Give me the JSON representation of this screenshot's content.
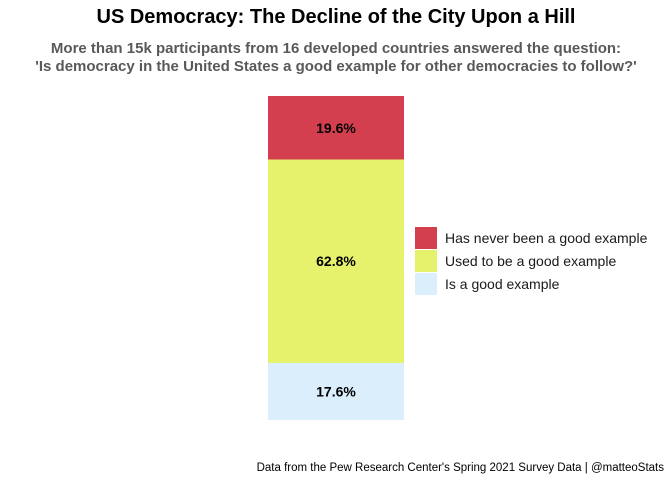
{
  "chart_data": {
    "type": "bar",
    "subtype": "stacked-100",
    "title": "US Democracy: The Decline of the City Upon a Hill",
    "subtitle_lines": [
      "More than 15k participants from 16 developed countries answered the question:",
      "'Is democracy in the United States a good example for other democracies to follow?'"
    ],
    "caption": "Data from the Pew Research Center's Spring 2021 Survey Data | @matteoStats",
    "ylim": [
      0,
      100
    ],
    "grid": false,
    "legend_position": "right",
    "series": [
      {
        "name": "Has never been a good example",
        "value": 19.6,
        "label": "19.6%",
        "color": "#d43f50"
      },
      {
        "name": "Used to be a good example",
        "value": 62.8,
        "label": "62.8%",
        "color": "#e6f26b"
      },
      {
        "name": "Is a good example",
        "value": 17.6,
        "label": "17.6%",
        "color": "#dbeefc"
      }
    ]
  }
}
